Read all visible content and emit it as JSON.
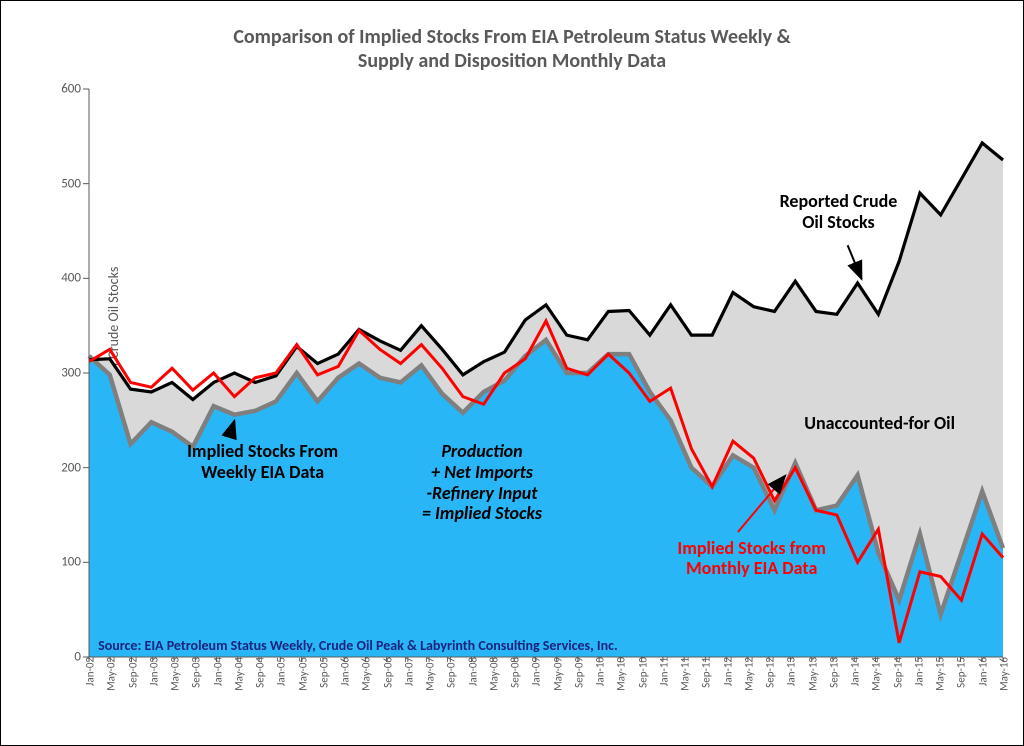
{
  "title": {
    "line1": "Comparison of Implied Stocks From EIA Petroleum Status Weekly &",
    "line2": "Supply and Disposition Monthly Data",
    "fontsize": 20,
    "color": "#595959"
  },
  "y_axis": {
    "label": "Millions of Barrels of Crude Oil Stocks",
    "fontsize": 14,
    "color": "#595959",
    "min": 0,
    "max": 600,
    "ticks": [
      0,
      100,
      200,
      300,
      400,
      500,
      600
    ]
  },
  "x_axis": {
    "labels": [
      "Jan-02",
      "May-02",
      "Sep-02",
      "Jan-03",
      "May-03",
      "Sep-03",
      "Jan-04",
      "May-04",
      "Sep-04",
      "Jan-05",
      "May-05",
      "Sep-05",
      "Jan-06",
      "May-06",
      "Sep-06",
      "Jan-07",
      "May-07",
      "Sep-07",
      "Jan-08",
      "May-08",
      "Sep-08",
      "Jan-09",
      "May-09",
      "Sep-09",
      "Jan-10",
      "May-10",
      "Sep-10",
      "Jan-11",
      "May-11",
      "Sep-11",
      "Jan-12",
      "May-12",
      "Sep-12",
      "Jan-13",
      "May-13",
      "Sep-13",
      "Jan-14",
      "May-14",
      "Sep-14",
      "Jan-15",
      "May-15",
      "Sep-15",
      "Jan-16",
      "May-16"
    ],
    "fontsize": 11,
    "color": "#595959"
  },
  "colors": {
    "reported_line": "#000000",
    "reported_fill": "#d9d9d9",
    "weekly_line": "#7f7f7f",
    "weekly_fill": "#29b6f6",
    "monthly_line": "#ff0000",
    "background": "#ffffff"
  },
  "line_widths": {
    "reported": 3.2,
    "weekly": 4.5,
    "monthly": 3.0
  },
  "series": {
    "reported": [
      314,
      315,
      283,
      280,
      290,
      272,
      290,
      300,
      290,
      297,
      328,
      310,
      320,
      346,
      334,
      324,
      350,
      325,
      298,
      312,
      322,
      356,
      372,
      340,
      335,
      365,
      366,
      340,
      372,
      340,
      340,
      385,
      370,
      365,
      397,
      365,
      362,
      395,
      362,
      418,
      490,
      467,
      505,
      543,
      525
    ],
    "weekly": [
      318,
      298,
      225,
      248,
      238,
      222,
      265,
      256,
      260,
      270,
      300,
      270,
      295,
      310,
      295,
      290,
      308,
      278,
      258,
      280,
      292,
      318,
      335,
      300,
      300,
      320,
      320,
      280,
      250,
      200,
      180,
      213,
      200,
      155,
      205,
      155,
      160,
      192,
      110,
      60,
      130,
      45,
      110,
      175,
      115
    ],
    "monthly": [
      312,
      325,
      290,
      285,
      305,
      282,
      300,
      275,
      295,
      300,
      330,
      298,
      307,
      345,
      325,
      310,
      330,
      305,
      275,
      267,
      300,
      315,
      355,
      305,
      298,
      320,
      300,
      270,
      284,
      220,
      180,
      228,
      210,
      165,
      200,
      155,
      150,
      100,
      135,
      15,
      90,
      85,
      60,
      130,
      105
    ]
  },
  "annotations": {
    "reported": {
      "text1": "Reported Crude",
      "text2": "Oil Stocks",
      "color": "#000000",
      "fontsize": 18
    },
    "unaccounted": {
      "text": "Unaccounted-for Oil",
      "color": "#000000",
      "fontsize": 18
    },
    "weekly_label": {
      "text1": "Implied Stocks From",
      "text2": "Weekly EIA Data",
      "color": "#000000",
      "fontsize": 18
    },
    "formula": {
      "l1": "Production",
      "l2": "+ Net Imports",
      "l3": "-Refinery Input",
      "l4": "= Implied Stocks",
      "color": "#000000",
      "fontsize": 18,
      "style": "italic"
    },
    "monthly_label": {
      "text1": "Implied Stocks from",
      "text2": "Monthly EIA Data",
      "color": "#ff0000",
      "fontsize": 18
    },
    "source": {
      "text": "Source: EIA Petroleum Status Weekly, Crude Oil Peak & Labyrinth Consulting Services, Inc.",
      "color": "#1a237e",
      "fontsize": 14
    }
  }
}
